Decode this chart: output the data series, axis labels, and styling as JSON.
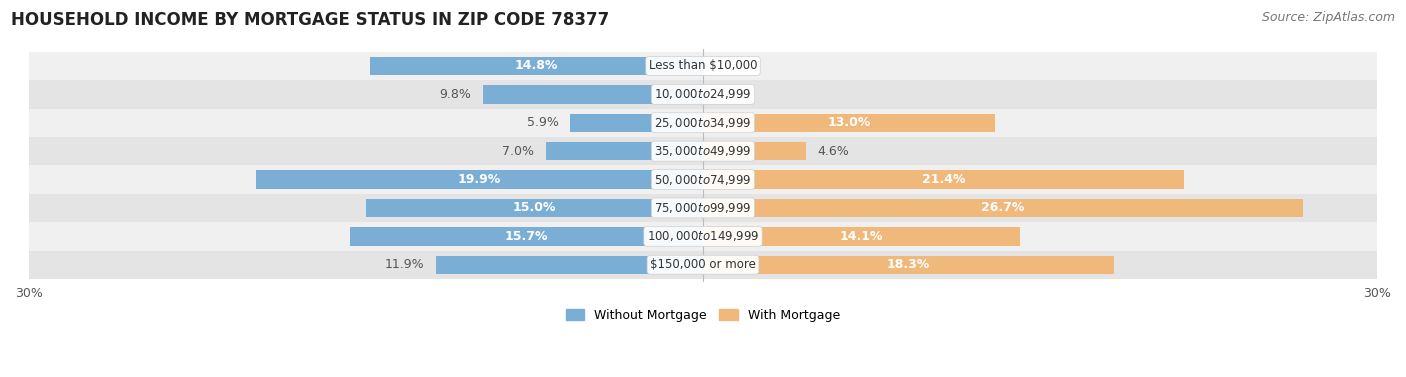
{
  "title": "HOUSEHOLD INCOME BY MORTGAGE STATUS IN ZIP CODE 78377",
  "source": "Source: ZipAtlas.com",
  "categories": [
    "Less than $10,000",
    "$10,000 to $24,999",
    "$25,000 to $34,999",
    "$35,000 to $49,999",
    "$50,000 to $74,999",
    "$75,000 to $99,999",
    "$100,000 to $149,999",
    "$150,000 or more"
  ],
  "without_mortgage": [
    14.8,
    9.8,
    5.9,
    7.0,
    19.9,
    15.0,
    15.7,
    11.9
  ],
  "with_mortgage": [
    0.0,
    0.0,
    13.0,
    4.6,
    21.4,
    26.7,
    14.1,
    18.3
  ],
  "without_mortgage_color": "#7aaed4",
  "with_mortgage_color": "#f0b87a",
  "row_bg_colors": [
    "#f0f0f0",
    "#e4e4e4"
  ],
  "xlim": 30.0,
  "legend_labels": [
    "Without Mortgage",
    "With Mortgage"
  ],
  "title_fontsize": 12,
  "source_fontsize": 9,
  "label_fontsize": 9,
  "axis_label_fontsize": 9,
  "category_fontsize": 8.5,
  "inside_label_threshold_without": 12.0,
  "inside_label_threshold_with": 10.0
}
